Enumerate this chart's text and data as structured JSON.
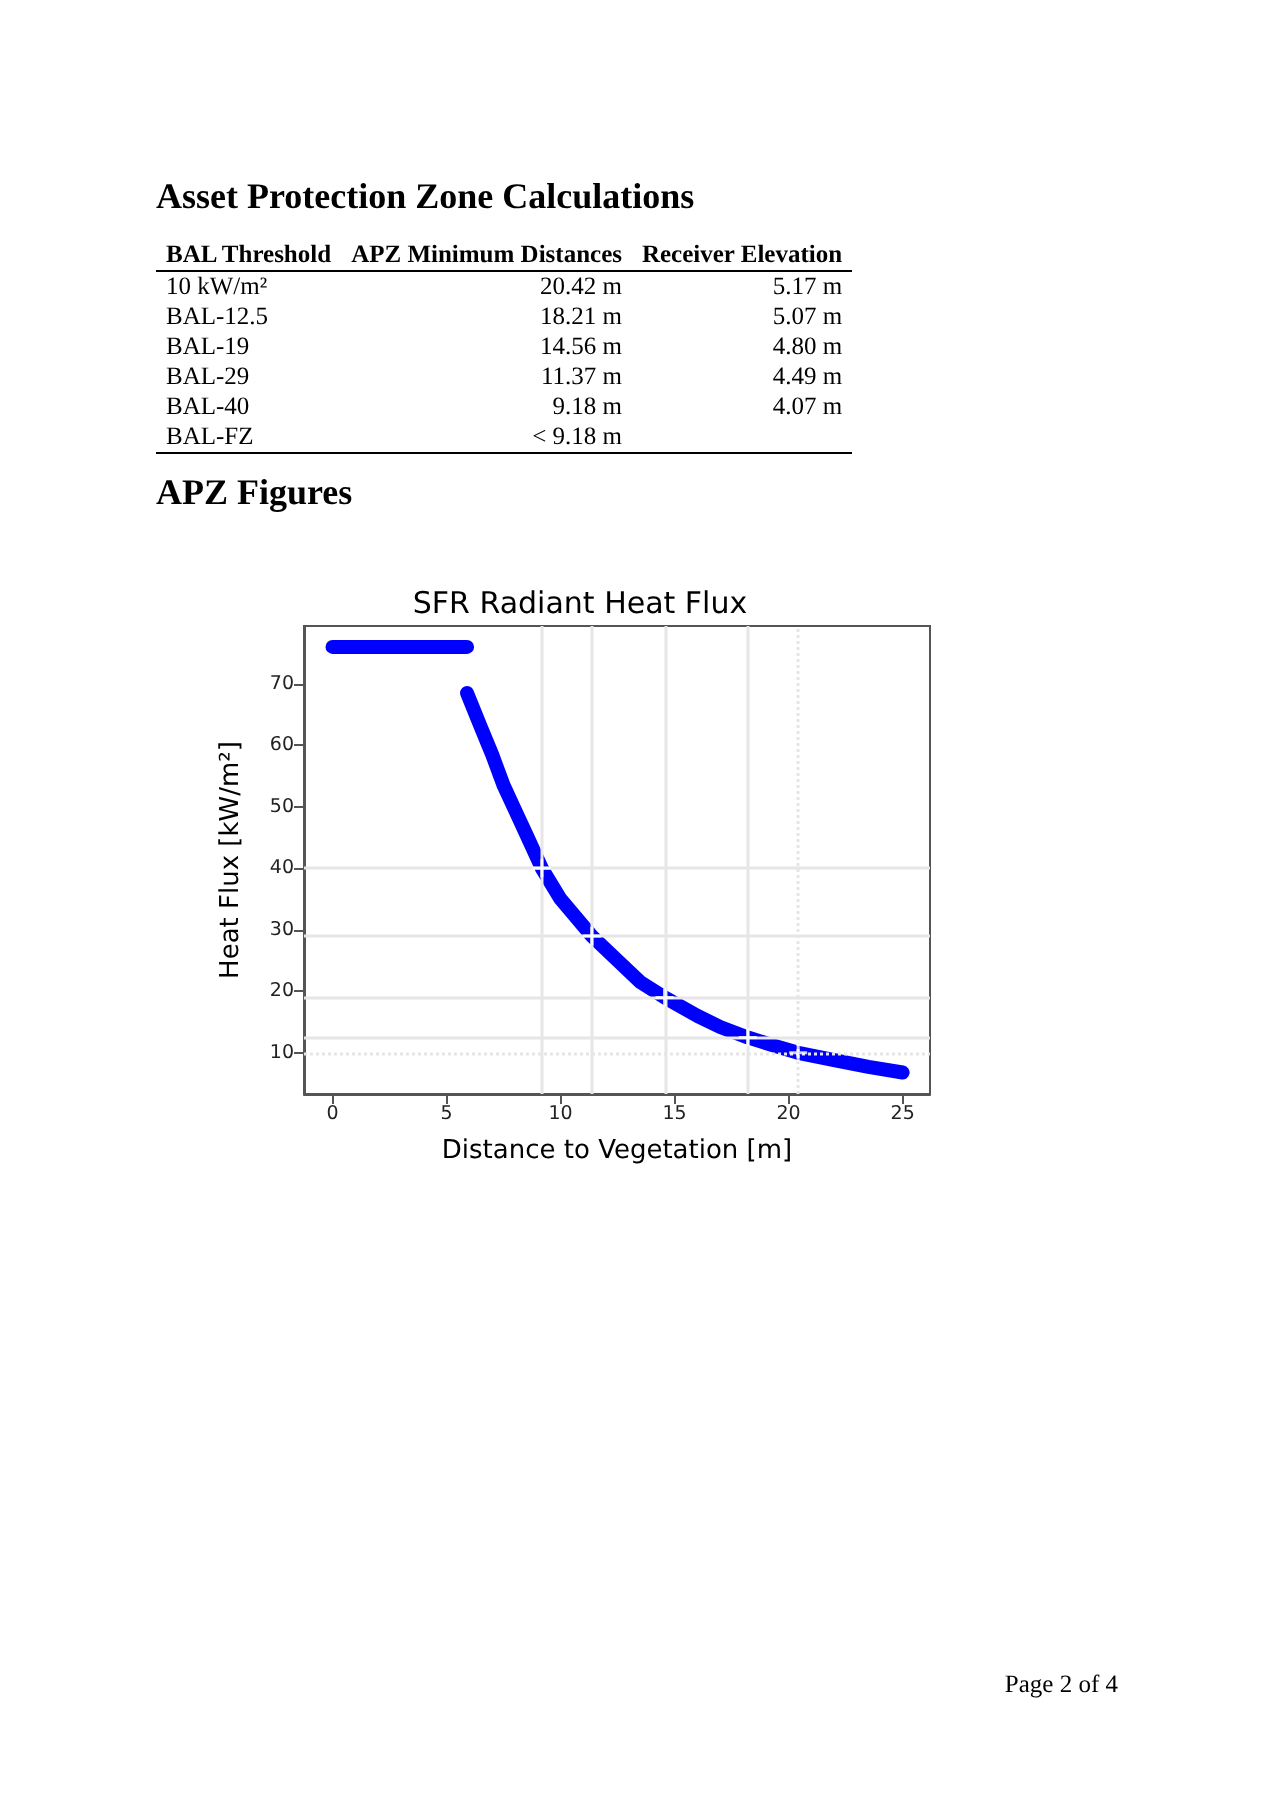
{
  "chart_data": [
    {
      "type": "other",
      "title": "Asset Protection Zone Calculations",
      "categories": [
        "BAL Threshold",
        "APZ Minimum Distances",
        "Receiver Elevation"
      ],
      "cell_labels": [
        [
          "10 kW/m²",
          "20.42 m",
          "5.17 m"
        ],
        [
          "BAL-12.5",
          "18.21 m",
          "5.07 m"
        ],
        [
          "BAL-19",
          "14.56 m",
          "4.80 m"
        ],
        [
          "BAL-29",
          "11.37 m",
          "4.49 m"
        ],
        [
          "BAL-40",
          "9.18 m",
          "4.07 m"
        ],
        [
          "BAL-FZ",
          "< 9.18 m",
          null
        ]
      ]
    },
    {
      "type": "other",
      "title": "APZ Figures"
    },
    {
      "type": "line",
      "title": "SFR Radiant Heat Flux",
      "xlabel": "Distance to Vegetation [m]",
      "ylabel": "Heat Flux [kW/m²]",
      "annotations": [
        "Page 2 of 4"
      ],
      "xlim": [
        -1.25,
        26.2
      ],
      "ylim": [
        3.3,
        79.4
      ],
      "xticks": [
        0,
        5,
        10,
        15,
        20,
        25
      ],
      "yticks": [
        10,
        20,
        30,
        40,
        50,
        60,
        70
      ],
      "marker": "none",
      "grid": false,
      "series": [
        {
          "color": "#0000ff",
          "x": [
            0,
            1,
            2,
            3,
            4,
            5,
            5.9
          ],
          "values": [
            76,
            76,
            76,
            76,
            76,
            76,
            76
          ]
        },
        {
          "color": "#0000ff",
          "x": [
            5.9,
            6.5,
            7,
            7.5,
            8,
            8.5,
            9.18,
            10,
            11.37,
            12.5,
            13.5,
            14.56,
            16,
            17,
            18.21,
            19.5,
            20.42,
            22,
            23.5,
            25
          ],
          "values": [
            68.5,
            63,
            58.5,
            53.5,
            49.5,
            45.5,
            40,
            35,
            29,
            25,
            21.5,
            19,
            16,
            14.2,
            12.5,
            11,
            10,
            8.8,
            7.7,
            6.8
          ]
        },
        {
          "type": "scatter",
          "marker": "cross",
          "color": "#ffffff",
          "x": [
            9.18,
            11.37,
            14.56,
            18.21,
            20.42
          ],
          "values": [
            40,
            29,
            19,
            12.5,
            10
          ]
        }
      ],
      "ref_lines": [
        {
          "axis": "x",
          "value": 9.18,
          "color": "#e6e6e6",
          "line_style": "solid"
        },
        {
          "axis": "x",
          "value": 11.37,
          "color": "#e6e6e6",
          "line_style": "solid"
        },
        {
          "axis": "x",
          "value": 14.56,
          "color": "#e6e6e6",
          "line_style": "solid"
        },
        {
          "axis": "x",
          "value": 18.21,
          "color": "#e6e6e6",
          "line_style": "solid"
        },
        {
          "axis": "x",
          "value": 20.42,
          "color": "#e6e6e6",
          "line_style": "dotted"
        },
        {
          "axis": "y",
          "value": 40,
          "color": "#e6e6e6",
          "line_style": "solid"
        },
        {
          "axis": "y",
          "value": 29,
          "color": "#e6e6e6",
          "line_style": "solid"
        },
        {
          "axis": "y",
          "value": 19,
          "color": "#e6e6e6",
          "line_style": "solid"
        },
        {
          "axis": "y",
          "value": 12.5,
          "color": "#e6e6e6",
          "line_style": "solid"
        },
        {
          "axis": "y",
          "value": 10,
          "color": "#e6e6e6",
          "line_style": "dotted"
        }
      ]
    }
  ]
}
